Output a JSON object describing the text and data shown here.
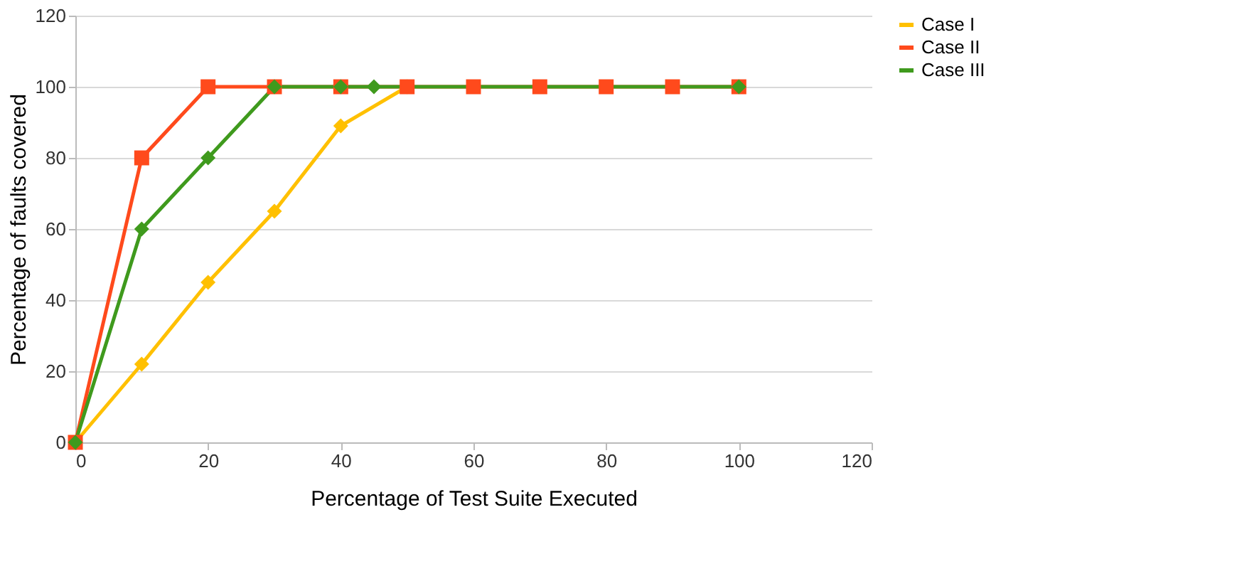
{
  "chart_data": {
    "type": "line",
    "xlabel": "Percentage of Test Suite Executed",
    "ylabel": "Percentage of faults covered",
    "series": [
      {
        "name": "Case I",
        "color": "#ffc000",
        "x": [
          0,
          10,
          20,
          30,
          40,
          50
        ],
        "values": [
          0,
          22,
          45,
          65,
          89,
          100
        ]
      },
      {
        "name": "Case II",
        "color": "#ff4a1c",
        "marker": "square",
        "x": [
          0,
          10,
          20,
          30,
          40,
          50,
          60,
          70,
          80,
          90,
          100
        ],
        "values": [
          0,
          80,
          100,
          100,
          100,
          100,
          100,
          100,
          100,
          100,
          100
        ]
      },
      {
        "name": "Case III",
        "color": "#3f9a1d",
        "x": [
          0,
          10,
          20,
          30,
          40,
          45,
          100
        ],
        "values": [
          0,
          60,
          80,
          100,
          100,
          100,
          100
        ]
      }
    ],
    "marker": "diamond",
    "xlim": [
      0,
      120
    ],
    "xticks": [
      0,
      20,
      40,
      60,
      80,
      100,
      120
    ],
    "ylim": [
      0,
      120
    ],
    "yticks": [
      0,
      20,
      40,
      60,
      80,
      100,
      120
    ],
    "grid": "y",
    "legend": "right"
  }
}
